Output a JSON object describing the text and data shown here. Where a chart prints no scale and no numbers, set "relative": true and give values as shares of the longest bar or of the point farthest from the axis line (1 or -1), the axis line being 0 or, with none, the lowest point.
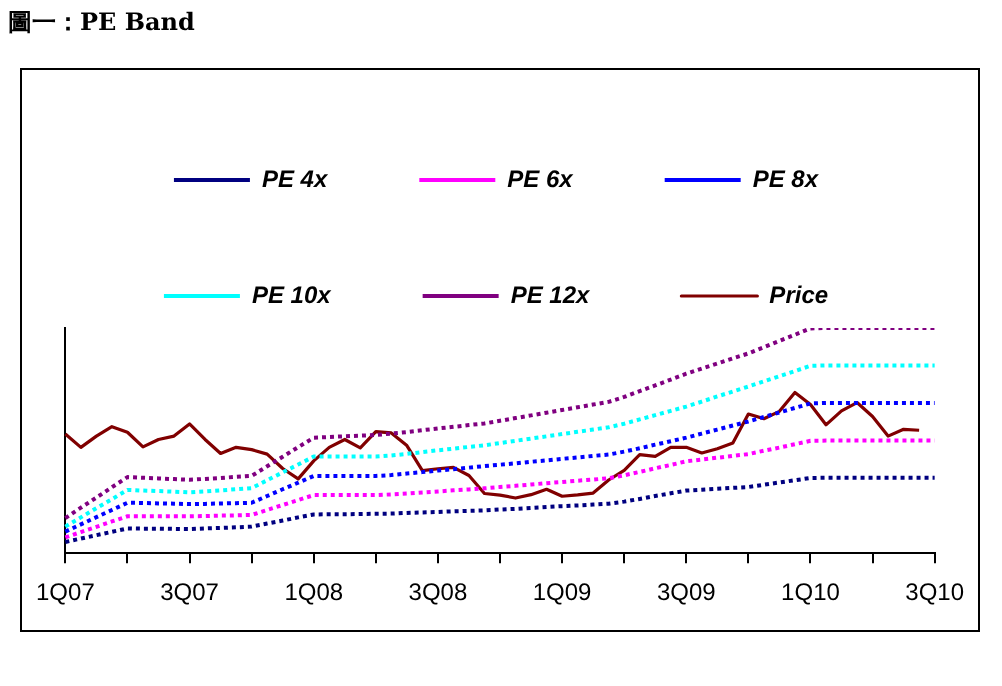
{
  "chart_data": {
    "type": "line",
    "title": "圖一：PE Band",
    "relative": true,
    "categories": [
      "1Q07",
      null,
      null,
      null,
      null,
      null,
      null,
      null,
      "3Q07",
      null,
      null,
      null,
      null,
      null,
      null,
      null,
      "1Q08",
      null,
      null,
      null,
      null,
      null,
      null,
      null,
      "3Q08",
      null,
      null,
      null,
      null,
      null,
      null,
      null,
      "1Q09",
      null,
      null,
      null,
      null,
      null,
      null,
      null,
      "3Q09",
      null,
      null,
      null,
      null,
      null,
      null,
      null,
      "1Q10",
      null,
      null,
      null,
      null,
      null,
      null,
      null,
      "3Q10"
    ],
    "tick_labels": "x",
    "grid": false,
    "legend": "top",
    "marker": "none",
    "series": [
      {
        "name": "PE 4x",
        "color": "#000080",
        "line_style": "dotted",
        "values": [
          0.05,
          0.065,
          0.08,
          0.095,
          0.11,
          0.109,
          0.109,
          0.108,
          0.107,
          0.11,
          0.112,
          0.115,
          0.118,
          0.132,
          0.145,
          0.159,
          0.172,
          0.173,
          0.173,
          0.174,
          0.175,
          0.176,
          0.179,
          0.181,
          0.183,
          0.186,
          0.188,
          0.19,
          0.194,
          0.197,
          0.201,
          0.205,
          0.209,
          0.212,
          0.216,
          0.22,
          0.229,
          0.241,
          0.254,
          0.266,
          0.278,
          0.282,
          0.286,
          0.29,
          0.294,
          0.304,
          0.314,
          0.324,
          0.334,
          0.335,
          0.335,
          0.335,
          0.335,
          0.335,
          0.335,
          0.335,
          0.335
        ]
      },
      {
        "name": "PE 6x",
        "color": "#ff00ff",
        "line_style": "dotted",
        "values": [
          0.07,
          0.094,
          0.117,
          0.141,
          0.164,
          0.164,
          0.164,
          0.164,
          0.164,
          0.165,
          0.167,
          0.168,
          0.17,
          0.192,
          0.214,
          0.236,
          0.258,
          0.258,
          0.258,
          0.258,
          0.258,
          0.261,
          0.265,
          0.27,
          0.274,
          0.279,
          0.283,
          0.288,
          0.294,
          0.299,
          0.305,
          0.311,
          0.316,
          0.322,
          0.327,
          0.333,
          0.346,
          0.361,
          0.377,
          0.392,
          0.408,
          0.416,
          0.424,
          0.432,
          0.44,
          0.455,
          0.469,
          0.484,
          0.499,
          0.5,
          0.5,
          0.5,
          0.5,
          0.5,
          0.5,
          0.5,
          0.5
        ]
      },
      {
        "name": "PE 8x",
        "color": "#0000ff",
        "line_style": "dotted",
        "values": [
          0.096,
          0.128,
          0.16,
          0.192,
          0.224,
          0.223,
          0.221,
          0.22,
          0.218,
          0.219,
          0.221,
          0.222,
          0.224,
          0.254,
          0.284,
          0.313,
          0.343,
          0.343,
          0.343,
          0.343,
          0.343,
          0.347,
          0.354,
          0.36,
          0.367,
          0.373,
          0.38,
          0.387,
          0.393,
          0.399,
          0.406,
          0.412,
          0.419,
          0.425,
          0.432,
          0.438,
          0.451,
          0.466,
          0.482,
          0.497,
          0.513,
          0.531,
          0.549,
          0.567,
          0.585,
          0.605,
          0.625,
          0.645,
          0.665,
          0.667,
          0.667,
          0.667,
          0.667,
          0.667,
          0.667,
          0.667,
          0.667
        ]
      },
      {
        "name": "PE 10x",
        "color": "#00ffff",
        "line_style": "dotted",
        "values": [
          0.118,
          0.159,
          0.2,
          0.24,
          0.281,
          0.278,
          0.276,
          0.273,
          0.27,
          0.274,
          0.279,
          0.284,
          0.289,
          0.324,
          0.359,
          0.394,
          0.429,
          0.429,
          0.429,
          0.429,
          0.429,
          0.434,
          0.441,
          0.449,
          0.457,
          0.464,
          0.472,
          0.479,
          0.489,
          0.499,
          0.509,
          0.519,
          0.529,
          0.539,
          0.549,
          0.559,
          0.575,
          0.594,
          0.613,
          0.632,
          0.651,
          0.673,
          0.696,
          0.718,
          0.74,
          0.763,
          0.786,
          0.809,
          0.832,
          0.834,
          0.834,
          0.834,
          0.834,
          0.834,
          0.834,
          0.834,
          0.834
        ]
      },
      {
        "name": "PE 12x",
        "color": "#800080",
        "line_style": "dotted",
        "values": [
          0.156,
          0.202,
          0.247,
          0.293,
          0.338,
          0.335,
          0.332,
          0.329,
          0.326,
          0.33,
          0.334,
          0.339,
          0.343,
          0.386,
          0.428,
          0.471,
          0.513,
          0.516,
          0.519,
          0.522,
          0.525,
          0.531,
          0.538,
          0.546,
          0.554,
          0.561,
          0.569,
          0.576,
          0.588,
          0.6,
          0.612,
          0.624,
          0.636,
          0.648,
          0.66,
          0.672,
          0.694,
          0.72,
          0.745,
          0.771,
          0.797,
          0.82,
          0.842,
          0.865,
          0.887,
          0.915,
          0.943,
          0.97,
          0.998,
          1,
          1,
          1,
          1,
          1,
          1,
          1,
          1
        ]
      },
      {
        "name": "Price",
        "color": "#800000",
        "line_style": "solid",
        "values": [
          0.529,
          0.47,
          0.52,
          0.562,
          0.537,
          0.472,
          0.505,
          0.52,
          0.574,
          0.505,
          0.443,
          0.47,
          0.46,
          0.44,
          0.376,
          0.33,
          0.41,
          0.47,
          0.505,
          0.468,
          0.54,
          0.534,
          0.478,
          0.367,
          0.375,
          0.381,
          0.345,
          0.265,
          0.258,
          0.245,
          0.26,
          0.284,
          0.253,
          0.259,
          0.267,
          0.325,
          0.368,
          0.438,
          0.43,
          0.47,
          0.47,
          0.445,
          0.464,
          0.489,
          0.618,
          0.597,
          0.63,
          0.714,
          0.66,
          0.57,
          0.632,
          0.669,
          0.607,
          0.52,
          0.55,
          0.546,
          null
        ]
      }
    ]
  }
}
